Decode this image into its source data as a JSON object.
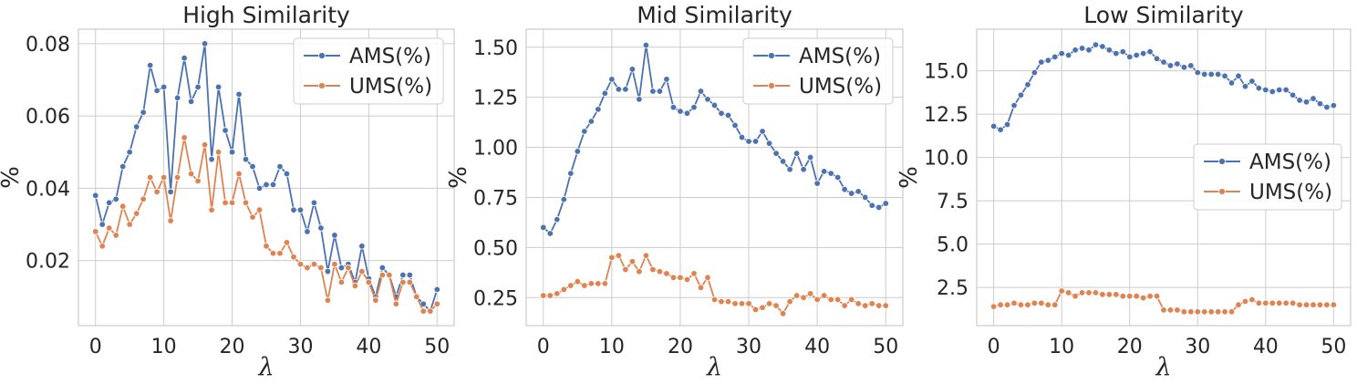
{
  "chart_data": [
    {
      "type": "line",
      "title": "High Similarity",
      "xlabel": "λ",
      "ylabel": "%",
      "xlim": [
        -2.5,
        52.5
      ],
      "ylim": [
        0.002,
        0.084
      ],
      "xticks": [
        0,
        10,
        20,
        30,
        40,
        50
      ],
      "xtick_labels": [
        "0",
        "10",
        "20",
        "30",
        "40",
        "50"
      ],
      "yticks": [
        0.02,
        0.04,
        0.06,
        0.08
      ],
      "ytick_labels": [
        "0.02",
        "0.04",
        "0.06",
        "0.08"
      ],
      "legend_position": "top-right",
      "x": [
        0,
        1,
        2,
        3,
        4,
        5,
        6,
        7,
        8,
        9,
        10,
        11,
        12,
        13,
        14,
        15,
        16,
        17,
        18,
        19,
        20,
        21,
        22,
        23,
        24,
        25,
        26,
        27,
        28,
        29,
        30,
        31,
        32,
        33,
        34,
        35,
        36,
        37,
        38,
        39,
        40,
        41,
        42,
        43,
        44,
        45,
        46,
        47,
        48,
        49,
        50
      ],
      "series": [
        {
          "name": "AMS(%)",
          "color": "#4c72b0",
          "values": [
            0.038,
            0.03,
            0.036,
            0.037,
            0.046,
            0.05,
            0.057,
            0.061,
            0.074,
            0.067,
            0.068,
            0.039,
            0.065,
            0.076,
            0.064,
            0.068,
            0.08,
            0.048,
            0.068,
            0.056,
            0.05,
            0.066,
            0.048,
            0.046,
            0.04,
            0.041,
            0.041,
            0.046,
            0.044,
            0.034,
            0.034,
            0.028,
            0.036,
            0.029,
            0.017,
            0.027,
            0.018,
            0.019,
            0.014,
            0.024,
            0.015,
            0.01,
            0.018,
            0.016,
            0.01,
            0.016,
            0.016,
            0.01,
            0.008,
            0.006,
            0.012
          ]
        },
        {
          "name": "UMS(%)",
          "color": "#dd8452",
          "values": [
            0.028,
            0.024,
            0.029,
            0.027,
            0.035,
            0.03,
            0.033,
            0.037,
            0.043,
            0.039,
            0.043,
            0.031,
            0.043,
            0.054,
            0.044,
            0.042,
            0.052,
            0.034,
            0.05,
            0.036,
            0.036,
            0.044,
            0.036,
            0.032,
            0.034,
            0.024,
            0.022,
            0.022,
            0.025,
            0.021,
            0.019,
            0.018,
            0.019,
            0.018,
            0.009,
            0.019,
            0.014,
            0.018,
            0.013,
            0.017,
            0.014,
            0.009,
            0.016,
            0.016,
            0.008,
            0.014,
            0.014,
            0.01,
            0.006,
            0.006,
            0.008
          ]
        }
      ]
    },
    {
      "type": "line",
      "title": "Mid Similarity",
      "xlabel": "λ",
      "ylabel": "%",
      "xlim": [
        -2.5,
        52.5
      ],
      "ylim": [
        0.11,
        1.59
      ],
      "xticks": [
        0,
        10,
        20,
        30,
        40,
        50
      ],
      "xtick_labels": [
        "0",
        "10",
        "20",
        "30",
        "40",
        "50"
      ],
      "yticks": [
        0.25,
        0.5,
        0.75,
        1.0,
        1.25,
        1.5
      ],
      "ytick_labels": [
        "0.25",
        "0.50",
        "0.75",
        "1.00",
        "1.25",
        "1.50"
      ],
      "legend_position": "top-right",
      "x": [
        0,
        1,
        2,
        3,
        4,
        5,
        6,
        7,
        8,
        9,
        10,
        11,
        12,
        13,
        14,
        15,
        16,
        17,
        18,
        19,
        20,
        21,
        22,
        23,
        24,
        25,
        26,
        27,
        28,
        29,
        30,
        31,
        32,
        33,
        34,
        35,
        36,
        37,
        38,
        39,
        40,
        41,
        42,
        43,
        44,
        45,
        46,
        47,
        48,
        49,
        50
      ],
      "series": [
        {
          "name": "AMS(%)",
          "color": "#4c72b0",
          "values": [
            0.6,
            0.57,
            0.64,
            0.74,
            0.87,
            0.98,
            1.08,
            1.13,
            1.19,
            1.27,
            1.34,
            1.29,
            1.29,
            1.39,
            1.24,
            1.51,
            1.28,
            1.28,
            1.34,
            1.2,
            1.18,
            1.17,
            1.2,
            1.28,
            1.24,
            1.21,
            1.17,
            1.16,
            1.11,
            1.05,
            1.03,
            1.03,
            1.08,
            1.02,
            0.97,
            0.93,
            0.89,
            0.97,
            0.89,
            0.95,
            0.82,
            0.88,
            0.87,
            0.85,
            0.79,
            0.77,
            0.78,
            0.75,
            0.71,
            0.7,
            0.72
          ]
        },
        {
          "name": "UMS(%)",
          "color": "#dd8452",
          "values": [
            0.26,
            0.26,
            0.27,
            0.29,
            0.31,
            0.33,
            0.31,
            0.32,
            0.32,
            0.32,
            0.45,
            0.46,
            0.39,
            0.43,
            0.38,
            0.46,
            0.39,
            0.38,
            0.37,
            0.35,
            0.35,
            0.34,
            0.37,
            0.3,
            0.35,
            0.24,
            0.23,
            0.23,
            0.22,
            0.22,
            0.22,
            0.19,
            0.2,
            0.22,
            0.21,
            0.17,
            0.23,
            0.26,
            0.25,
            0.27,
            0.24,
            0.26,
            0.24,
            0.24,
            0.21,
            0.24,
            0.22,
            0.21,
            0.22,
            0.21,
            0.21
          ]
        }
      ]
    },
    {
      "type": "line",
      "title": "Low Similarity",
      "xlabel": "λ",
      "ylabel": "%",
      "xlim": [
        -2.5,
        52.5
      ],
      "ylim": [
        0.3,
        17.4
      ],
      "xticks": [
        0,
        10,
        20,
        30,
        40,
        50
      ],
      "xtick_labels": [
        "0",
        "10",
        "20",
        "30",
        "40",
        "50"
      ],
      "yticks": [
        2.5,
        5.0,
        7.5,
        10.0,
        12.5,
        15.0
      ],
      "ytick_labels": [
        "2.5",
        "5.0",
        "7.5",
        "10.0",
        "12.5",
        "15.0"
      ],
      "legend_position": "center-right",
      "x": [
        0,
        1,
        2,
        3,
        4,
        5,
        6,
        7,
        8,
        9,
        10,
        11,
        12,
        13,
        14,
        15,
        16,
        17,
        18,
        19,
        20,
        21,
        22,
        23,
        24,
        25,
        26,
        27,
        28,
        29,
        30,
        31,
        32,
        33,
        34,
        35,
        36,
        37,
        38,
        39,
        40,
        41,
        42,
        43,
        44,
        45,
        46,
        47,
        48,
        49,
        50
      ],
      "series": [
        {
          "name": "AMS(%)",
          "color": "#4c72b0",
          "values": [
            11.8,
            11.6,
            11.9,
            13.0,
            13.6,
            14.2,
            14.9,
            15.5,
            15.6,
            15.8,
            16.0,
            15.9,
            16.2,
            16.3,
            16.2,
            16.5,
            16.4,
            16.2,
            16.0,
            16.1,
            15.8,
            15.9,
            16.0,
            16.1,
            15.7,
            15.5,
            15.3,
            15.4,
            15.2,
            15.3,
            14.9,
            14.8,
            14.8,
            14.8,
            14.7,
            14.3,
            14.7,
            14.1,
            14.4,
            14.0,
            13.9,
            13.8,
            13.9,
            13.9,
            13.6,
            13.3,
            13.2,
            13.4,
            13.1,
            12.9,
            13.0
          ]
        },
        {
          "name": "UMS(%)",
          "color": "#dd8452",
          "values": [
            1.4,
            1.5,
            1.5,
            1.6,
            1.5,
            1.5,
            1.6,
            1.6,
            1.5,
            1.5,
            2.3,
            2.2,
            2.0,
            2.2,
            2.2,
            2.2,
            2.1,
            2.1,
            2.1,
            2.0,
            2.0,
            2.0,
            1.9,
            2.0,
            2.0,
            1.2,
            1.2,
            1.2,
            1.1,
            1.1,
            1.1,
            1.1,
            1.1,
            1.1,
            1.1,
            1.1,
            1.5,
            1.7,
            1.8,
            1.6,
            1.6,
            1.6,
            1.6,
            1.6,
            1.6,
            1.5,
            1.5,
            1.5,
            1.5,
            1.5,
            1.5
          ]
        }
      ]
    }
  ]
}
